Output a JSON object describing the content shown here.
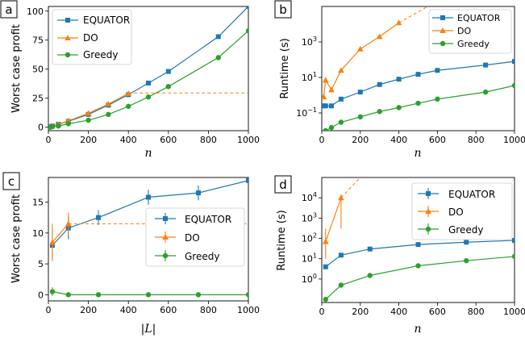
{
  "colors": {
    "EQUATOR": "#1f77b4",
    "DO": "#ff7f0e",
    "Greedy": "#2ca02c"
  },
  "chart_data": [
    {
      "id": "a",
      "panel_label": "a",
      "type": "line",
      "xlabel": "n",
      "ylabel": "Worst case profit",
      "xlim": [
        0,
        1000
      ],
      "ylim": [
        -3,
        104
      ],
      "yscale": "linear",
      "xticks": [
        0,
        200,
        400,
        600,
        800,
        1000
      ],
      "yticks": [
        0,
        25,
        50,
        75,
        100
      ],
      "legend_position": "top-left",
      "series": [
        {
          "name": "EQUATOR",
          "marker": "square",
          "x": [
            10,
            20,
            50,
            100,
            200,
            300,
            400,
            500,
            600,
            850,
            1000
          ],
          "y": [
            0.5,
            1,
            2.5,
            5,
            11,
            19,
            28,
            38,
            48,
            78,
            104
          ]
        },
        {
          "name": "DO",
          "marker": "triangle",
          "x": [
            10,
            20,
            50,
            100,
            200,
            300,
            400
          ],
          "y": [
            0.5,
            1,
            2.5,
            5.5,
            12,
            20,
            29
          ],
          "extension": {
            "x": [
              400,
              1000
            ],
            "y": [
              29.5,
              29.5
            ]
          }
        },
        {
          "name": "Greedy",
          "marker": "circle",
          "x": [
            10,
            20,
            50,
            100,
            200,
            300,
            400,
            500,
            600,
            850,
            1000
          ],
          "y": [
            0,
            0.5,
            1,
            3,
            6,
            11,
            18,
            26,
            35,
            60,
            83
          ]
        }
      ]
    },
    {
      "id": "b",
      "panel_label": "b",
      "type": "line",
      "xlabel": "n",
      "ylabel": "Runtime (s)",
      "xlim": [
        0,
        1000
      ],
      "ylim": [
        0.01,
        100000
      ],
      "yscale": "log",
      "xticks": [
        0,
        200,
        400,
        600,
        800,
        1000
      ],
      "yticks": [
        {
          "value": 0.1,
          "base": "10",
          "exp": "−1"
        },
        {
          "value": 10,
          "base": "10",
          "exp": "1"
        },
        {
          "value": 1000,
          "base": "10",
          "exp": "3"
        }
      ],
      "legend_position": "top-right",
      "series": [
        {
          "name": "EQUATOR",
          "marker": "square",
          "x": [
            10,
            20,
            50,
            100,
            200,
            300,
            400,
            500,
            600,
            850,
            1000
          ],
          "y": [
            0.25,
            0.25,
            0.25,
            0.6,
            1.5,
            4,
            8,
            15,
            25,
            50,
            80
          ]
        },
        {
          "name": "DO",
          "marker": "triangle",
          "x": [
            10,
            20,
            50,
            100,
            200,
            300,
            400
          ],
          "y": [
            0.8,
            7,
            2,
            25,
            400,
            2000,
            12000
          ],
          "extension": {
            "x": [
              400,
              550
            ],
            "y": [
              12000,
              100000
            ]
          }
        },
        {
          "name": "Greedy",
          "marker": "circle",
          "x": [
            20,
            50,
            100,
            200,
            300,
            400,
            500,
            600,
            850,
            1000
          ],
          "y": [
            0.01,
            0.015,
            0.03,
            0.06,
            0.12,
            0.2,
            0.35,
            0.6,
            1.5,
            3.5
          ]
        }
      ]
    },
    {
      "id": "c",
      "panel_label": "c",
      "type": "line",
      "xlabel": "|L|",
      "ylabel": "Worst case profit",
      "xlim": [
        0,
        1000
      ],
      "ylim": [
        -1,
        19
      ],
      "yscale": "linear",
      "xticks": [
        0,
        200,
        400,
        600,
        800,
        1000
      ],
      "yticks": [
        0,
        5,
        10,
        15
      ],
      "legend_position": "right",
      "series": [
        {
          "name": "EQUATOR",
          "marker": "square",
          "x": [
            20,
            100,
            250,
            500,
            750,
            1000
          ],
          "y": [
            8,
            10.8,
            12.5,
            15.8,
            16.5,
            18.5
          ],
          "err": [
            2.5,
            1.8,
            1.2,
            1.2,
            1.2,
            0.4
          ]
        },
        {
          "name": "DO",
          "marker": "triangle",
          "x": [
            20,
            100
          ],
          "y": [
            8.5,
            11.5
          ],
          "err": [
            3,
            1.8
          ],
          "extension": {
            "x": [
              100,
              1000
            ],
            "y": [
              11.5,
              11.5
            ]
          }
        },
        {
          "name": "Greedy",
          "marker": "circle",
          "x": [
            20,
            100,
            250,
            500,
            750,
            1000
          ],
          "y": [
            0.5,
            0,
            0,
            0,
            0,
            0
          ],
          "err": [
            0.7,
            0.05,
            0.05,
            0.05,
            0.05,
            0.05
          ]
        }
      ]
    },
    {
      "id": "d",
      "panel_label": "d",
      "type": "line",
      "xlabel": "n",
      "ylabel": "Runtime (s)",
      "xlim": [
        0,
        1000
      ],
      "ylim": [
        0.07,
        100000
      ],
      "yscale": "log",
      "xticks": [
        0,
        200,
        400,
        600,
        800,
        1000
      ],
      "yticks": [
        {
          "value": 1,
          "base": "10",
          "exp": "0"
        },
        {
          "value": 10,
          "base": "10",
          "exp": "1"
        },
        {
          "value": 100,
          "base": "10",
          "exp": "2"
        },
        {
          "value": 1000,
          "base": "10",
          "exp": "3"
        },
        {
          "value": 10000,
          "base": "10",
          "exp": "4"
        }
      ],
      "legend_position": "top-right",
      "series": [
        {
          "name": "EQUATOR",
          "marker": "square",
          "x": [
            20,
            100,
            250,
            500,
            750,
            1000
          ],
          "y": [
            4,
            15,
            30,
            50,
            65,
            80
          ]
        },
        {
          "name": "DO",
          "marker": "triangle",
          "x": [
            20,
            100
          ],
          "y": [
            70,
            10000
          ],
          "errlog": [
            [
              10,
              300
            ],
            [
              300,
              15000
            ]
          ],
          "extension": {
            "x": [
              100,
              200
            ],
            "y": [
              10000,
              100000
            ]
          }
        },
        {
          "name": "Greedy",
          "marker": "circle",
          "x": [
            20,
            100,
            250,
            500,
            750,
            1000
          ],
          "y": [
            0.1,
            0.5,
            1.5,
            4.5,
            8,
            13
          ]
        }
      ]
    }
  ]
}
